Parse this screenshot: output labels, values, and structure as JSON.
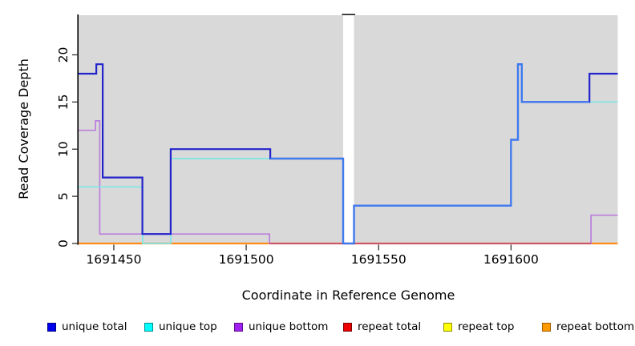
{
  "chart_data": {
    "type": "line",
    "subtype": "step-coverage",
    "title": "",
    "xlabel": "Coordinate in Reference Genome",
    "ylabel": "Read Coverage Depth",
    "xlim": [
      1691436.7,
      1691640.3
    ],
    "ylim": [
      0,
      24.2
    ],
    "x_ticks": [
      1691450,
      1691500,
      1691550,
      1691600
    ],
    "y_ticks": [
      0,
      5,
      10,
      15,
      20
    ],
    "grid": false,
    "legend_position": "bottom",
    "panel_bg": "#d9d9d9",
    "axis_color": "#000000",
    "masked_gap_x": [
      1691536.6,
      1691540.7
    ],
    "series": [
      {
        "name": "unique total",
        "line_color": "#2323cc",
        "line_color_when_equal_top": "#3d7bf0",
        "legend_color": "#0000ee",
        "legend_border": "#000080",
        "segments": [
          [
            1691436.7,
            1691443.4,
            18
          ],
          [
            1691443.4,
            1691445.8,
            19
          ],
          [
            1691445.8,
            1691460.8,
            7
          ],
          [
            1691460.8,
            1691471.5,
            1
          ],
          [
            1691471.5,
            1691509.1,
            10
          ],
          [
            1691509.1,
            1691536.6,
            9
          ],
          [
            1691536.6,
            1691540.7,
            0
          ],
          [
            1691540.7,
            1691600.0,
            4
          ],
          [
            1691600.0,
            1691602.6,
            11
          ],
          [
            1691602.6,
            1691604.1,
            19
          ],
          [
            1691604.1,
            1691629.6,
            15
          ],
          [
            1691629.6,
            1691640.3,
            18
          ]
        ]
      },
      {
        "name": "unique top",
        "line_color": "#7fe6e6",
        "legend_color": "#00ffff",
        "legend_border": "#008b8b",
        "segments": [
          [
            1691436.7,
            1691460.9,
            6
          ],
          [
            1691460.9,
            1691471.5,
            0
          ],
          [
            1691471.5,
            1691536.6,
            9
          ],
          [
            1691536.6,
            1691540.7,
            0
          ],
          [
            1691540.7,
            1691600.0,
            4
          ],
          [
            1691600.0,
            1691602.6,
            11
          ],
          [
            1691602.6,
            1691604.1,
            19
          ],
          [
            1691604.1,
            1691640.3,
            15
          ]
        ]
      },
      {
        "name": "unique bottom",
        "line_color": "#bb7edc",
        "legend_color": "#a020f0",
        "legend_border": "#5a0d8a",
        "segments": [
          [
            1691436.7,
            1691443.1,
            12
          ],
          [
            1691443.1,
            1691444.7,
            13
          ],
          [
            1691444.7,
            1691508.8,
            1
          ],
          [
            1691508.8,
            1691630.2,
            0
          ],
          [
            1691630.2,
            1691640.3,
            3
          ]
        ]
      },
      {
        "name": "repeat total",
        "line_color": "#c9536f",
        "legend_color": "#ee0000",
        "legend_border": "#7a0000",
        "segments": [
          [
            1691436.7,
            1691640.3,
            0
          ]
        ]
      },
      {
        "name": "repeat top",
        "line_color": "#ffff33",
        "legend_color": "#ffff00",
        "legend_border": "#909000",
        "segments": [
          [
            1691436.7,
            1691640.3,
            0
          ]
        ]
      },
      {
        "name": "repeat bottom",
        "line_color": "#ff8c1a",
        "legend_color": "#ff9900",
        "legend_border": "#a35a00",
        "segments": [
          [
            1691436.7,
            1691640.3,
            0
          ]
        ]
      }
    ]
  }
}
